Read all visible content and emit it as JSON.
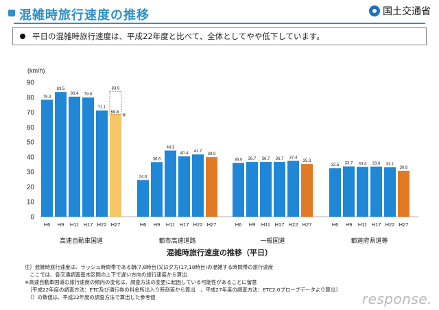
{
  "header": {
    "title": "混雑時旅行速度の推移",
    "brand": "国土交通省"
  },
  "summary": "平日の混雑時旅行速度は、平成22年度と比べて、全体としてやや低下しています。",
  "caption": "混雑時旅行速度の推移（平日）",
  "notes": [
    "注）混雑時旅行速度は、ラッシュ時間帯である朝(7,8時台)又は夕方(17,18時台)の混雑する時間帯の旅行速度",
    "　ここでは、各交通調査基本区間の上下で遅い方向の旅行速度から算出",
    "※高速自動車国道の旅行速度の傾向の変化は、調査方法の変更に起因している可能性があることに留意",
    "　［平成22年度の調査方法：ETC及び通行券の料金所出入り時刻差から算出　，平成27年度の調査方法：ETC2.0プローブデータより算出］",
    "　（）の数値は、平成22年度の調査方法で算出した参考値"
  ],
  "watermark": "response.",
  "colors": {
    "bar_blue": "#1f87d6",
    "bar_orange": "#e07a26",
    "bar_yellow": "#f5c56a",
    "title_blue": "#2d8fc9"
  },
  "chart_data": {
    "type": "bar",
    "ylabel": "(km/h)",
    "ylim": [
      0,
      90
    ],
    "yticks": [
      0,
      10,
      20,
      30,
      40,
      50,
      60,
      70,
      80,
      90
    ],
    "grid": false,
    "groups": [
      {
        "name": "高速自動車国道",
        "categories": [
          "H6",
          "H9",
          "H11",
          "H17",
          "H22",
          "H27"
        ],
        "values": [
          78.3,
          83.5,
          80.4,
          79.8,
          71.1,
          68.8
        ],
        "labels": [
          "78.3",
          "83.5",
          "80.4",
          "79.8",
          "71.1",
          "68.8"
        ],
        "reference": {
          "category": "H27",
          "value": 83.9,
          "label": "83.9",
          "marker": "※"
        }
      },
      {
        "name": "都市高速道路",
        "categories": [
          "H6",
          "H9",
          "H11",
          "H17",
          "H22",
          "H27"
        ],
        "values": [
          24.6,
          36.6,
          44.3,
          40.4,
          41.7,
          39.9
        ],
        "labels": [
          "24.6",
          "36.6",
          "44.3",
          "40.4",
          "41.7",
          "39.9"
        ]
      },
      {
        "name": "一般国道",
        "categories": [
          "H6",
          "H9",
          "H11",
          "H17",
          "H22",
          "H27"
        ],
        "values": [
          36.0,
          36.7,
          36.7,
          36.7,
          37.4,
          35.3
        ],
        "labels": [
          "36.0",
          "36.7",
          "36.7",
          "36.7",
          "37.4",
          "35.3"
        ]
      },
      {
        "name": "都道府県道等",
        "categories": [
          "H6",
          "H9",
          "H11",
          "H17",
          "H22",
          "H27"
        ],
        "values": [
          32.5,
          33.7,
          33.4,
          33.6,
          33.1,
          30.8
        ],
        "labels": [
          "32.5",
          "33.7",
          "33.4",
          "33.6",
          "33.1",
          "30.8"
        ]
      }
    ]
  }
}
